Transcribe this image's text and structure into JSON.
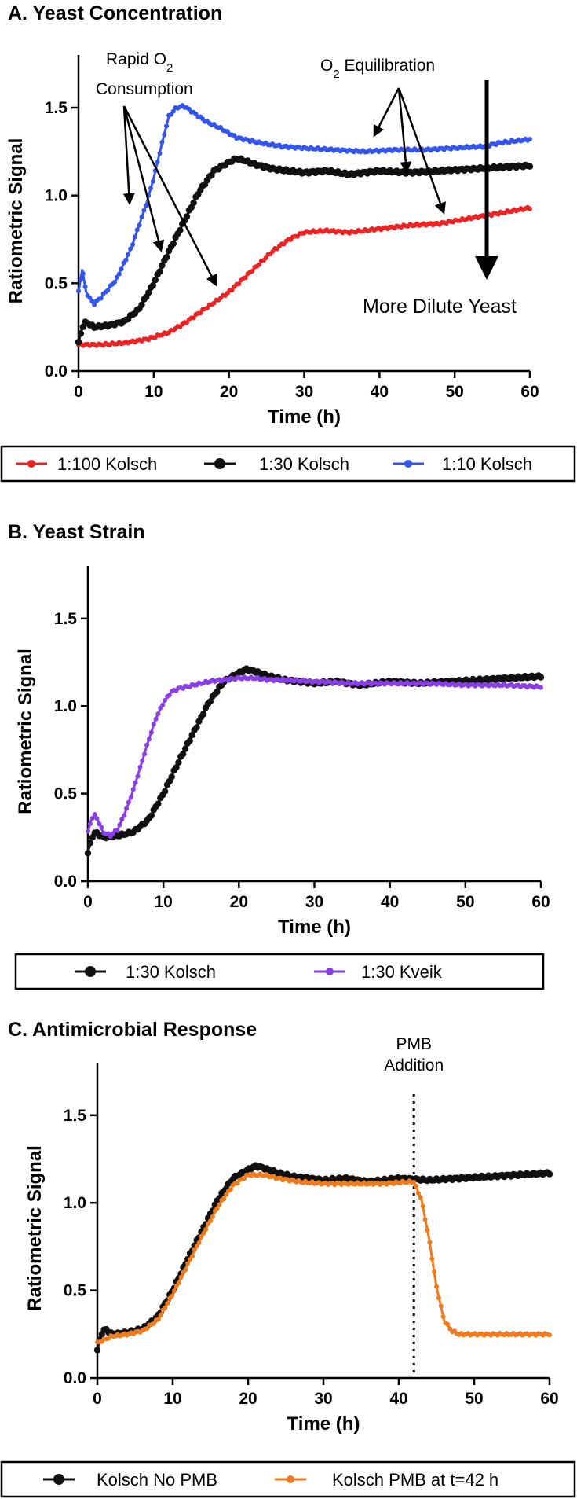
{
  "chart_data": [
    {
      "type": "line",
      "title": "A.  Yeast Concentration",
      "xlabel": "Time (h)",
      "ylabel": "Ratiometric Signal",
      "xlim": [
        0,
        60
      ],
      "ylim": [
        0,
        1.8
      ],
      "xticks": [
        "0",
        "10",
        "20",
        "30",
        "40",
        "50",
        "60"
      ],
      "yticks": [
        "0.0",
        "0.5",
        "1.0",
        "1.5"
      ],
      "legend_position": "bottom",
      "series": [
        {
          "name": "1:100 Kolsch",
          "color": "#ee2222",
          "x": [
            0,
            1,
            3,
            6,
            9,
            12,
            14,
            16,
            18,
            20,
            22,
            24,
            26,
            28,
            30,
            33,
            36,
            40,
            44,
            48,
            52,
            56,
            60
          ],
          "y": [
            0.15,
            0.15,
            0.15,
            0.16,
            0.18,
            0.22,
            0.27,
            0.33,
            0.39,
            0.45,
            0.53,
            0.61,
            0.69,
            0.75,
            0.79,
            0.8,
            0.79,
            0.81,
            0.83,
            0.84,
            0.87,
            0.9,
            0.93
          ]
        },
        {
          "name": "1:30 Kolsch",
          "color": "#111111",
          "x": [
            0,
            0.5,
            1,
            2,
            4,
            6,
            8,
            10,
            12,
            14,
            16,
            18,
            20,
            21,
            22,
            24,
            26,
            28,
            30,
            33,
            36,
            40,
            44,
            48,
            52,
            56,
            60
          ],
          "y": [
            0.16,
            0.25,
            0.28,
            0.25,
            0.26,
            0.28,
            0.35,
            0.5,
            0.68,
            0.85,
            1.02,
            1.14,
            1.19,
            1.21,
            1.2,
            1.17,
            1.15,
            1.14,
            1.13,
            1.14,
            1.12,
            1.14,
            1.13,
            1.14,
            1.15,
            1.16,
            1.17
          ]
        },
        {
          "name": "1:10 Kolsch",
          "color": "#3355ee",
          "x": [
            0,
            0.5,
            1,
            2,
            3,
            5,
            7,
            9,
            10,
            11,
            12,
            13,
            14,
            15,
            17,
            19,
            21,
            24,
            27,
            30,
            34,
            38,
            42,
            46,
            50,
            54,
            56,
            60
          ],
          "y": [
            0.45,
            0.58,
            0.45,
            0.38,
            0.42,
            0.52,
            0.7,
            0.95,
            1.1,
            1.28,
            1.45,
            1.5,
            1.51,
            1.48,
            1.42,
            1.38,
            1.33,
            1.3,
            1.28,
            1.27,
            1.26,
            1.25,
            1.26,
            1.26,
            1.27,
            1.28,
            1.3,
            1.32
          ]
        }
      ],
      "annotations": [
        {
          "text": "Rapid O",
          "sub": "2",
          "text2": "Consumption"
        },
        {
          "text": "O",
          "sub": "2",
          "text2": " Equilibration"
        },
        {
          "text": "More Dilute Yeast"
        }
      ]
    },
    {
      "type": "line",
      "title": "B.  Yeast Strain",
      "xlabel": "Time (h)",
      "ylabel": "Ratiometric Signal",
      "xlim": [
        0,
        60
      ],
      "ylim": [
        0,
        1.8
      ],
      "xticks": [
        "0",
        "10",
        "20",
        "30",
        "40",
        "50",
        "60"
      ],
      "yticks": [
        "0.0",
        "0.5",
        "1.0",
        "1.5"
      ],
      "legend_position": "bottom",
      "series": [
        {
          "name": "1:30 Kolsch",
          "color": "#111111",
          "x": [
            0,
            0.5,
            1,
            2,
            4,
            6,
            8,
            10,
            12,
            14,
            16,
            18,
            20,
            21,
            22,
            24,
            26,
            28,
            30,
            33,
            36,
            40,
            44,
            48,
            52,
            56,
            60
          ],
          "y": [
            0.16,
            0.25,
            0.28,
            0.25,
            0.26,
            0.28,
            0.35,
            0.5,
            0.68,
            0.85,
            1.02,
            1.14,
            1.19,
            1.21,
            1.2,
            1.17,
            1.15,
            1.14,
            1.13,
            1.14,
            1.12,
            1.14,
            1.13,
            1.14,
            1.15,
            1.16,
            1.17
          ]
        },
        {
          "name": "1:30 Kveik",
          "color": "#8a3ee6",
          "x": [
            0,
            0.5,
            1,
            2,
            3,
            4,
            5,
            6,
            7,
            8,
            9,
            10,
            11,
            12,
            14,
            16,
            18,
            20,
            22,
            24,
            26,
            30,
            35,
            40,
            45,
            50,
            55,
            60
          ],
          "y": [
            0.28,
            0.36,
            0.38,
            0.28,
            0.26,
            0.3,
            0.4,
            0.52,
            0.66,
            0.8,
            0.93,
            1.02,
            1.08,
            1.1,
            1.12,
            1.14,
            1.15,
            1.16,
            1.16,
            1.15,
            1.15,
            1.14,
            1.13,
            1.13,
            1.13,
            1.12,
            1.12,
            1.11
          ]
        }
      ]
    },
    {
      "type": "line",
      "title": "C. Antimicrobial Response",
      "xlabel": "Time (h)",
      "ylabel": "Ratiometric Signal",
      "xlim": [
        0,
        60
      ],
      "ylim": [
        0,
        1.8
      ],
      "xticks": [
        "0",
        "10",
        "20",
        "30",
        "40",
        "50",
        "60"
      ],
      "yticks": [
        "0.0",
        "0.5",
        "1.0",
        "1.5"
      ],
      "legend_position": "bottom",
      "vline_x": 42,
      "series": [
        {
          "name": "Kolsch No PMB",
          "color": "#111111",
          "x": [
            0,
            0.5,
            1,
            2,
            4,
            6,
            8,
            10,
            12,
            14,
            16,
            18,
            20,
            21,
            22,
            24,
            26,
            28,
            30,
            33,
            36,
            40,
            44,
            48,
            52,
            56,
            60
          ],
          "y": [
            0.16,
            0.25,
            0.28,
            0.25,
            0.26,
            0.28,
            0.35,
            0.5,
            0.68,
            0.85,
            1.02,
            1.14,
            1.19,
            1.21,
            1.2,
            1.17,
            1.15,
            1.14,
            1.13,
            1.14,
            1.12,
            1.14,
            1.13,
            1.14,
            1.15,
            1.16,
            1.17
          ]
        },
        {
          "name": "Kolsch PMB at t=42 h",
          "color": "#f07a1e",
          "x": [
            0,
            2,
            4,
            6,
            8,
            10,
            12,
            14,
            16,
            18,
            20,
            22,
            24,
            27,
            30,
            34,
            38,
            41,
            42,
            43,
            44,
            45,
            46,
            47,
            48,
            50,
            52,
            56,
            60
          ],
          "y": [
            0.2,
            0.24,
            0.25,
            0.27,
            0.33,
            0.48,
            0.65,
            0.82,
            0.98,
            1.1,
            1.16,
            1.16,
            1.14,
            1.12,
            1.11,
            1.11,
            1.11,
            1.12,
            1.12,
            1.02,
            0.8,
            0.52,
            0.33,
            0.27,
            0.25,
            0.25,
            0.25,
            0.25,
            0.25
          ]
        }
      ],
      "annotations": [
        {
          "text": "PMB"
        },
        {
          "text": "Addition"
        }
      ]
    }
  ]
}
